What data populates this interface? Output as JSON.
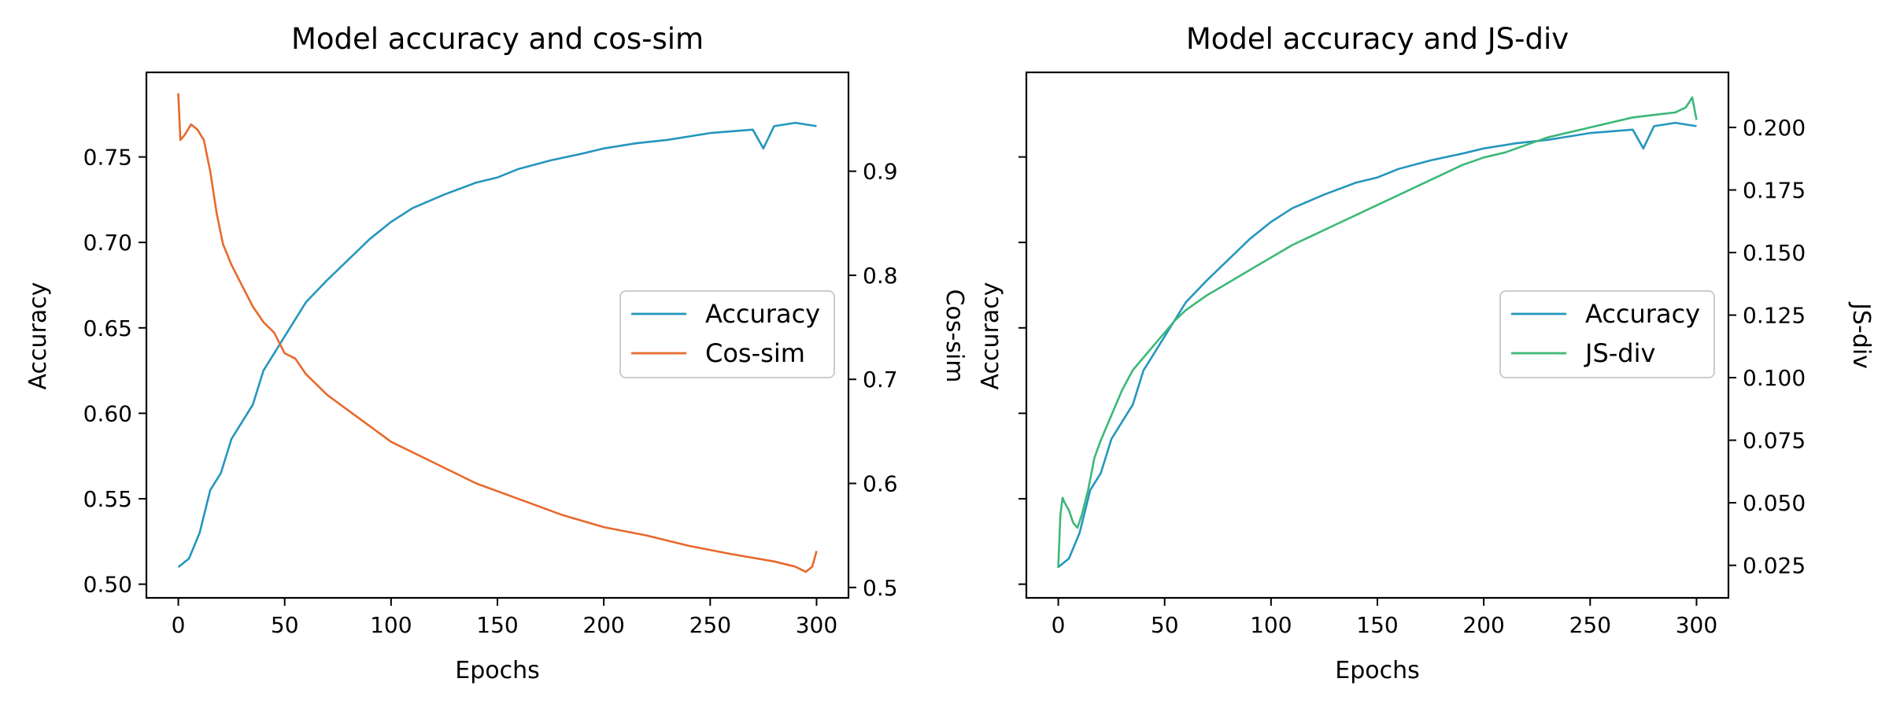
{
  "chart_data": [
    {
      "type": "line",
      "title": "Model accuracy and cos-sim",
      "xlabel": "Epochs",
      "ylabel": "Accuracy",
      "y2label": "Cos-sim",
      "xlim": [
        -15,
        315
      ],
      "ylim": [
        0.492,
        0.7995
      ],
      "y2lim": [
        0.49,
        0.995
      ],
      "x_ticks": [
        "0",
        "50",
        "100",
        "150",
        "200",
        "250",
        "300"
      ],
      "y_ticks": [
        "0.50",
        "0.55",
        "0.60",
        "0.65",
        "0.70",
        "0.75"
      ],
      "y2_ticks": [
        "0.5",
        "0.6",
        "0.7",
        "0.8",
        "0.9"
      ],
      "grid": false,
      "legend_position": "center-right",
      "legend": [
        "Accuracy",
        "Cos-sim"
      ],
      "series": [
        {
          "name": "Accuracy",
          "axis": "left",
          "color": "#2596be",
          "x": [
            0,
            5,
            10,
            15,
            20,
            25,
            30,
            35,
            40,
            45,
            50,
            55,
            60,
            70,
            80,
            90,
            100,
            110,
            125,
            140,
            150,
            160,
            175,
            190,
            200,
            215,
            230,
            240,
            250,
            260,
            270,
            275,
            280,
            290,
            300
          ],
          "y": [
            0.51,
            0.515,
            0.53,
            0.555,
            0.565,
            0.585,
            0.595,
            0.605,
            0.625,
            0.635,
            0.645,
            0.655,
            0.665,
            0.678,
            0.69,
            0.702,
            0.712,
            0.72,
            0.728,
            0.735,
            0.738,
            0.743,
            0.748,
            0.752,
            0.755,
            0.758,
            0.76,
            0.762,
            0.764,
            0.765,
            0.766,
            0.755,
            0.768,
            0.77,
            0.768
          ]
        },
        {
          "name": "Cos-sim",
          "axis": "right",
          "color": "#e8692c",
          "x": [
            0,
            1,
            3,
            6,
            9,
            12,
            15,
            18,
            21,
            25,
            30,
            35,
            40,
            45,
            50,
            55,
            60,
            70,
            80,
            90,
            100,
            120,
            140,
            160,
            180,
            200,
            220,
            240,
            260,
            280,
            290,
            295,
            298,
            300
          ],
          "y": [
            0.975,
            0.93,
            0.935,
            0.945,
            0.94,
            0.93,
            0.9,
            0.86,
            0.83,
            0.81,
            0.79,
            0.77,
            0.755,
            0.745,
            0.725,
            0.72,
            0.705,
            0.685,
            0.67,
            0.655,
            0.64,
            0.62,
            0.6,
            0.585,
            0.57,
            0.558,
            0.55,
            0.54,
            0.532,
            0.525,
            0.52,
            0.515,
            0.52,
            0.535
          ]
        }
      ]
    },
    {
      "type": "line",
      "title": "Model accuracy and JS-div",
      "xlabel": "Epochs",
      "ylabel": "Accuracy",
      "y2label": "JS-div",
      "xlim": [
        -15,
        315
      ],
      "ylim": [
        0.492,
        0.7995
      ],
      "y2lim": [
        0.012,
        0.222
      ],
      "x_ticks": [
        "0",
        "50",
        "100",
        "150",
        "200",
        "250",
        "300"
      ],
      "y_ticks": [],
      "y2_ticks": [
        "0.025",
        "0.050",
        "0.075",
        "0.100",
        "0.125",
        "0.150",
        "0.175",
        "0.200"
      ],
      "grid": false,
      "legend_position": "center-right",
      "legend": [
        "Accuracy",
        "JS-div"
      ],
      "series": [
        {
          "name": "Accuracy",
          "axis": "left",
          "color": "#2596be",
          "x": [
            0,
            5,
            10,
            15,
            20,
            25,
            30,
            35,
            40,
            45,
            50,
            55,
            60,
            70,
            80,
            90,
            100,
            110,
            125,
            140,
            150,
            160,
            175,
            190,
            200,
            215,
            230,
            240,
            250,
            260,
            270,
            275,
            280,
            290,
            300
          ],
          "y": [
            0.51,
            0.515,
            0.53,
            0.555,
            0.565,
            0.585,
            0.595,
            0.605,
            0.625,
            0.635,
            0.645,
            0.655,
            0.665,
            0.678,
            0.69,
            0.702,
            0.712,
            0.72,
            0.728,
            0.735,
            0.738,
            0.743,
            0.748,
            0.752,
            0.755,
            0.758,
            0.76,
            0.762,
            0.764,
            0.765,
            0.766,
            0.755,
            0.768,
            0.77,
            0.768
          ]
        },
        {
          "name": "JS-div",
          "axis": "right",
          "color": "#3cb878",
          "x": [
            0,
            1,
            2,
            3,
            5,
            7,
            9,
            11,
            14,
            17,
            20,
            25,
            30,
            35,
            40,
            45,
            50,
            55,
            60,
            70,
            80,
            90,
            100,
            110,
            120,
            130,
            140,
            150,
            160,
            170,
            180,
            190,
            200,
            210,
            220,
            230,
            240,
            250,
            260,
            270,
            280,
            290,
            295,
            298,
            300
          ],
          "y": [
            0.024,
            0.045,
            0.052,
            0.05,
            0.047,
            0.042,
            0.04,
            0.045,
            0.055,
            0.068,
            0.075,
            0.085,
            0.095,
            0.103,
            0.108,
            0.113,
            0.118,
            0.123,
            0.127,
            0.133,
            0.138,
            0.143,
            0.148,
            0.153,
            0.157,
            0.161,
            0.165,
            0.169,
            0.173,
            0.177,
            0.181,
            0.185,
            0.188,
            0.19,
            0.193,
            0.196,
            0.198,
            0.2,
            0.202,
            0.204,
            0.205,
            0.206,
            0.208,
            0.212,
            0.203
          ]
        }
      ]
    }
  ]
}
